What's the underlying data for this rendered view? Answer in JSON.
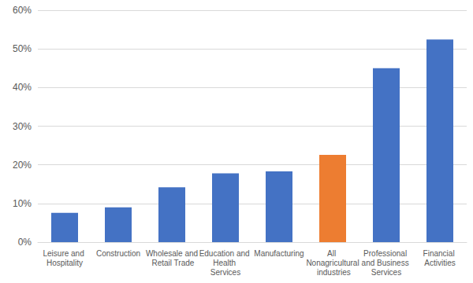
{
  "chart_data": {
    "type": "bar",
    "categories": [
      "Leisure and Hospitality",
      "Construction",
      "Wholesale and Retail Trade",
      "Education and Health Services",
      "Manufacturing",
      "All Nonagricultural industries",
      "Professional and Business Services",
      "Financial Activities"
    ],
    "values": [
      7.6,
      9.0,
      14.2,
      17.8,
      18.3,
      22.6,
      45.0,
      52.4
    ],
    "colors": [
      "#4472c4",
      "#4472c4",
      "#4472c4",
      "#4472c4",
      "#4472c4",
      "#ed7d31",
      "#4472c4",
      "#4472c4"
    ],
    "ylim": [
      0,
      60
    ],
    "yticks": [
      {
        "value": 0,
        "label": "0%"
      },
      {
        "value": 10,
        "label": "10%"
      },
      {
        "value": 20,
        "label": "20%"
      },
      {
        "value": 30,
        "label": "30%"
      },
      {
        "value": 40,
        "label": "40%"
      },
      {
        "value": 50,
        "label": "50%"
      },
      {
        "value": 60,
        "label": "60%"
      }
    ],
    "grid": true
  }
}
